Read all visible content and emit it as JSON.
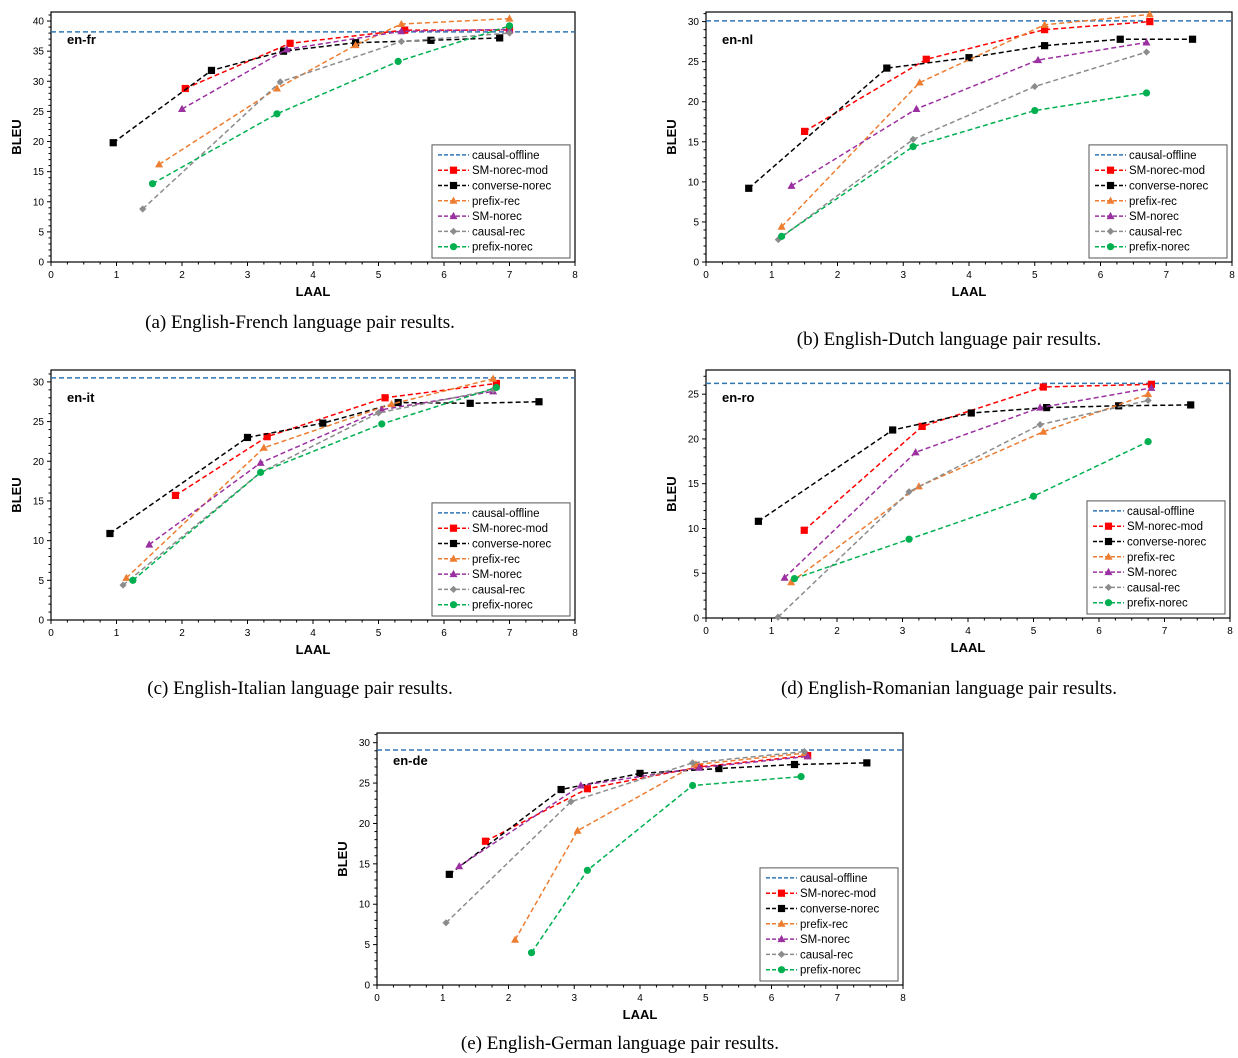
{
  "colors": {
    "causal-offline": "#2e75b6",
    "SM-norec-mod": "#ff0000",
    "converse-norec": "#000000",
    "prefix-rec": "#ed7d31",
    "SM-norec": "#9b30a0",
    "causal-rec": "#8c8c8c",
    "prefix-norec": "#00b050"
  },
  "markers": {
    "SM-norec-mod": "square",
    "converse-norec": "square",
    "prefix-rec": "triangle",
    "SM-norec": "triangle",
    "causal-rec": "diamond",
    "prefix-norec": "circle"
  },
  "chart_data": [
    {
      "type": "line",
      "label": "en-fr",
      "caption": "(a) English-French language pair results.",
      "xlabel": "LAAL",
      "ylabel": "BLEU",
      "xlim": [
        0,
        8
      ],
      "ylim": [
        0,
        41.5
      ],
      "ytick_step": 5,
      "ytick_max": 40,
      "legend": "bottom-right",
      "grid": false,
      "baseline": {
        "name": "causal-offline",
        "y": 38.2
      },
      "series": [
        {
          "name": "SM-norec-mod",
          "x": [
            2.05,
            3.65,
            5.4,
            7.0
          ],
          "y": [
            28.8,
            36.3,
            38.5,
            38.5
          ]
        },
        {
          "name": "converse-norec",
          "x": [
            0.95,
            2.45,
            3.55,
            4.65,
            5.8,
            6.85
          ],
          "y": [
            19.8,
            31.8,
            35.0,
            36.4,
            36.8,
            37.2
          ]
        },
        {
          "name": "prefix-rec",
          "x": [
            1.65,
            3.45,
            4.65,
            5.35,
            7.0
          ],
          "y": [
            16.2,
            28.8,
            36.0,
            39.5,
            40.4
          ]
        },
        {
          "name": "SM-norec",
          "x": [
            2.0,
            3.6,
            5.35,
            7.0
          ],
          "y": [
            25.4,
            35.3,
            38.3,
            38.6
          ]
        },
        {
          "name": "causal-rec",
          "x": [
            1.4,
            3.5,
            5.35,
            7.0
          ],
          "y": [
            8.8,
            29.9,
            36.6,
            38.0
          ]
        },
        {
          "name": "prefix-norec",
          "x": [
            1.55,
            3.45,
            5.3,
            7.0
          ],
          "y": [
            13.0,
            24.6,
            33.3,
            39.2
          ]
        }
      ]
    },
    {
      "type": "line",
      "label": "en-nl",
      "caption": "(b) English-Dutch language pair results.",
      "xlabel": "LAAL",
      "ylabel": "BLEU",
      "xlim": [
        0,
        8
      ],
      "ylim": [
        0,
        31.2
      ],
      "ytick_step": 5,
      "ytick_max": 30,
      "legend": "bottom-right",
      "grid": false,
      "baseline": {
        "name": "causal-offline",
        "y": 30.1
      },
      "series": [
        {
          "name": "SM-norec-mod",
          "x": [
            1.5,
            3.35,
            5.15,
            6.75
          ],
          "y": [
            16.3,
            25.3,
            29.0,
            30.0
          ]
        },
        {
          "name": "converse-norec",
          "x": [
            0.65,
            2.75,
            4.0,
            5.15,
            6.3,
            7.4
          ],
          "y": [
            9.2,
            24.2,
            25.5,
            27.0,
            27.8,
            27.8
          ]
        },
        {
          "name": "prefix-rec",
          "x": [
            1.15,
            3.25,
            5.15,
            6.75
          ],
          "y": [
            4.4,
            22.4,
            29.6,
            30.9
          ]
        },
        {
          "name": "SM-norec",
          "x": [
            1.3,
            3.2,
            5.05,
            6.7
          ],
          "y": [
            9.5,
            19.1,
            25.2,
            27.4
          ]
        },
        {
          "name": "causal-rec",
          "x": [
            1.1,
            3.15,
            5.0,
            6.7
          ],
          "y": [
            2.8,
            15.3,
            21.9,
            26.2
          ]
        },
        {
          "name": "prefix-norec",
          "x": [
            1.15,
            3.15,
            5.0,
            6.7
          ],
          "y": [
            3.2,
            14.4,
            18.9,
            21.1
          ]
        }
      ]
    },
    {
      "type": "line",
      "label": "en-it",
      "caption": "(c) English-Italian language pair results.",
      "xlabel": "LAAL",
      "ylabel": "BLEU",
      "xlim": [
        0,
        8
      ],
      "ylim": [
        0,
        31.5
      ],
      "ytick_step": 5,
      "ytick_max": 30,
      "legend": "bottom-right",
      "grid": false,
      "baseline": {
        "name": "causal-offline",
        "y": 30.5
      },
      "series": [
        {
          "name": "SM-norec-mod",
          "x": [
            1.9,
            3.3,
            5.1,
            6.8
          ],
          "y": [
            15.7,
            23.1,
            28.0,
            29.8
          ]
        },
        {
          "name": "converse-norec",
          "x": [
            0.9,
            3.0,
            4.15,
            5.3,
            6.4,
            7.45
          ],
          "y": [
            10.9,
            23.0,
            24.8,
            27.4,
            27.3,
            27.5
          ]
        },
        {
          "name": "prefix-rec",
          "x": [
            1.15,
            3.25,
            5.2,
            6.75
          ],
          "y": [
            5.3,
            21.7,
            27.2,
            30.4
          ]
        },
        {
          "name": "SM-norec",
          "x": [
            1.5,
            3.2,
            5.05,
            6.75
          ],
          "y": [
            9.5,
            19.8,
            26.5,
            28.8
          ]
        },
        {
          "name": "causal-rec",
          "x": [
            1.1,
            3.2,
            5.0,
            6.75
          ],
          "y": [
            4.4,
            18.6,
            26.1,
            29.0
          ]
        },
        {
          "name": "prefix-norec",
          "x": [
            1.25,
            3.2,
            5.05,
            6.8
          ],
          "y": [
            5.0,
            18.6,
            24.7,
            29.3
          ]
        }
      ]
    },
    {
      "type": "line",
      "label": "en-ro",
      "caption": "(d) English-Romanian language pair results.",
      "xlabel": "LAAL",
      "ylabel": "BLEU",
      "xlim": [
        0,
        8
      ],
      "ylim": [
        0,
        27.7
      ],
      "ytick_step": 5,
      "ytick_max": 25,
      "legend": "bottom-right",
      "grid": false,
      "baseline": {
        "name": "causal-offline",
        "y": 26.2
      },
      "series": [
        {
          "name": "SM-norec-mod",
          "x": [
            1.5,
            3.3,
            5.15,
            6.8
          ],
          "y": [
            9.8,
            21.4,
            25.8,
            26.1
          ]
        },
        {
          "name": "converse-norec",
          "x": [
            0.8,
            2.85,
            4.05,
            5.2,
            6.3,
            7.4
          ],
          "y": [
            10.8,
            21.0,
            22.9,
            23.5,
            23.7,
            23.8
          ]
        },
        {
          "name": "prefix-rec",
          "x": [
            1.3,
            3.25,
            5.15,
            6.75
          ],
          "y": [
            4.0,
            14.7,
            20.8,
            25.0
          ]
        },
        {
          "name": "SM-norec",
          "x": [
            1.2,
            3.2,
            5.1,
            6.8
          ],
          "y": [
            4.5,
            18.5,
            23.5,
            25.7
          ]
        },
        {
          "name": "causal-rec",
          "x": [
            1.1,
            3.1,
            5.1,
            6.75
          ],
          "y": [
            0.1,
            14.1,
            21.6,
            24.3
          ]
        },
        {
          "name": "prefix-norec",
          "x": [
            1.35,
            3.1,
            5.0,
            6.75
          ],
          "y": [
            4.4,
            8.8,
            13.6,
            19.7
          ]
        }
      ]
    },
    {
      "type": "line",
      "label": "en-de",
      "caption": "(e) English-German language pair results.",
      "xlabel": "LAAL",
      "ylabel": "BLEU",
      "xlim": [
        0,
        8
      ],
      "ylim": [
        0,
        31.2
      ],
      "ytick_step": 5,
      "ytick_max": 30,
      "legend": "bottom-right",
      "grid": false,
      "baseline": {
        "name": "causal-offline",
        "y": 29.1
      },
      "series": [
        {
          "name": "SM-norec-mod",
          "x": [
            1.65,
            3.2,
            4.9,
            6.55
          ],
          "y": [
            17.8,
            24.3,
            27.0,
            28.4
          ]
        },
        {
          "name": "converse-norec",
          "x": [
            1.1,
            2.8,
            4.0,
            5.2,
            6.35,
            7.45
          ],
          "y": [
            13.7,
            24.2,
            26.2,
            26.8,
            27.3,
            27.5
          ]
        },
        {
          "name": "prefix-rec",
          "x": [
            2.1,
            3.05,
            4.85,
            6.5
          ],
          "y": [
            5.6,
            19.1,
            27.3,
            28.7
          ]
        },
        {
          "name": "SM-norec",
          "x": [
            1.25,
            3.1,
            4.9,
            6.55
          ],
          "y": [
            14.7,
            24.7,
            26.9,
            28.3
          ]
        },
        {
          "name": "causal-rec",
          "x": [
            1.05,
            2.95,
            4.8,
            6.5
          ],
          "y": [
            7.7,
            22.7,
            27.5,
            28.9
          ]
        },
        {
          "name": "prefix-norec",
          "x": [
            2.35,
            3.2,
            4.8,
            6.45
          ],
          "y": [
            4.0,
            14.2,
            24.7,
            25.8
          ]
        }
      ]
    }
  ]
}
